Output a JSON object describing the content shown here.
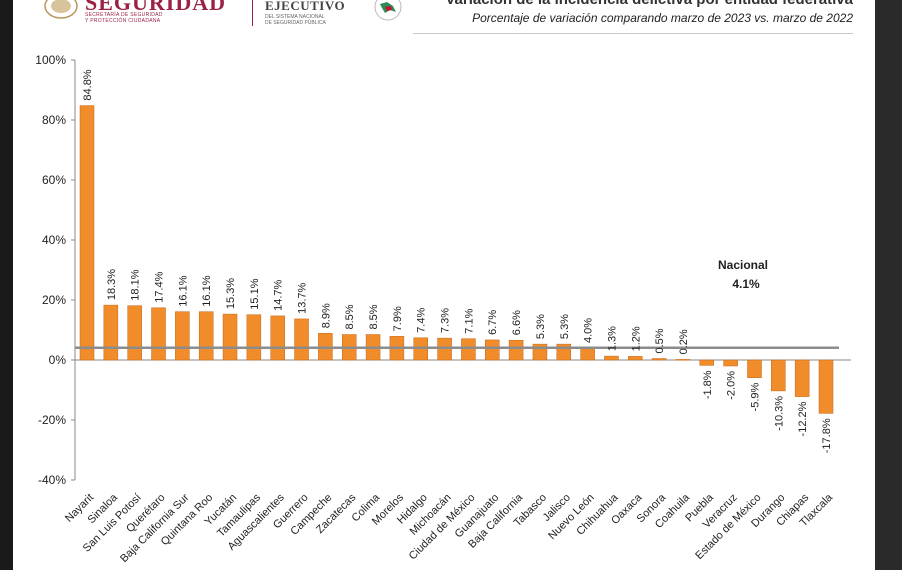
{
  "header": {
    "logo_main": "SEGURIDAD",
    "logo_sub": "SECRETARÍA DE SEGURIDAD\nY PROTECCIÓN CIUDADANA",
    "exec_main": "EJECUTIVO",
    "exec_sub": "DEL SISTEMA NACIONAL\nDE SEGURIDAD PÚBLICA",
    "title": "Variación de la incidencia delictiva por entidad federativa",
    "subtitle": "Porcentaje de variación comparando marzo de 2023 vs. marzo de 2022"
  },
  "colors": {
    "bar": "#F08C2A",
    "bar_edge": "#C8661A",
    "reference_line": "#8C8C8C",
    "brand": "#9B2242"
  },
  "chart_data": {
    "type": "bar",
    "categories": [
      "Nayarit",
      "Sinaloa",
      "San Luis Potosí",
      "Querétaro",
      "Baja California Sur",
      "Quintana Roo",
      "Yucatán",
      "Tamaulipas",
      "Aguascalientes",
      "Guerrero",
      "Campeche",
      "Zacatecas",
      "Colima",
      "Morelos",
      "Hidalgo",
      "Michoacán",
      "Ciudad de México",
      "Guanajuato",
      "Baja California",
      "Tabasco",
      "Jalisco",
      "Nuevo León",
      "Chihuahua",
      "Oaxaca",
      "Sonora",
      "Coahuila",
      "Puebla",
      "Veracruz",
      "Estado de México",
      "Durango",
      "Chiapas",
      "Tlaxcala"
    ],
    "values": [
      84.8,
      18.3,
      18.1,
      17.4,
      16.1,
      16.1,
      15.3,
      15.1,
      14.7,
      13.7,
      8.9,
      8.5,
      8.5,
      7.9,
      7.4,
      7.3,
      7.1,
      6.7,
      6.6,
      5.3,
      5.3,
      4.0,
      1.3,
      1.2,
      0.5,
      0.2,
      -1.8,
      -2.0,
      -5.9,
      -10.3,
      -12.2,
      -17.8
    ],
    "value_labels": [
      "84.8%",
      "18.3%",
      "18.1%",
      "17.4%",
      "16.1%",
      "16.1%",
      "15.3%",
      "15.1%",
      "14.7%",
      "13.7%",
      "8.9%",
      "8.5%",
      "8.5%",
      "7.9%",
      "7.4%",
      "7.3%",
      "7.1%",
      "6.7%",
      "6.6%",
      "5.3%",
      "5.3%",
      "4.0%",
      "1.3%",
      "1.2%",
      "0.5%",
      "0.2%",
      "-1.8%",
      "-2.0%",
      "-5.9%",
      "-10.3%",
      "-12.2%",
      "-17.8%"
    ],
    "y_ticks": [
      100,
      80,
      60,
      40,
      20,
      0,
      -20,
      -40
    ],
    "y_tick_labels": [
      "100%",
      "80%",
      "60%",
      "40%",
      "20%",
      "0%",
      "-20%",
      "-40%"
    ],
    "ylim": [
      -40,
      100
    ],
    "reference": {
      "label": "Nacional",
      "value": 4.1,
      "value_label": "4.1%"
    },
    "xlabel": "",
    "ylabel": "",
    "grid": false
  }
}
